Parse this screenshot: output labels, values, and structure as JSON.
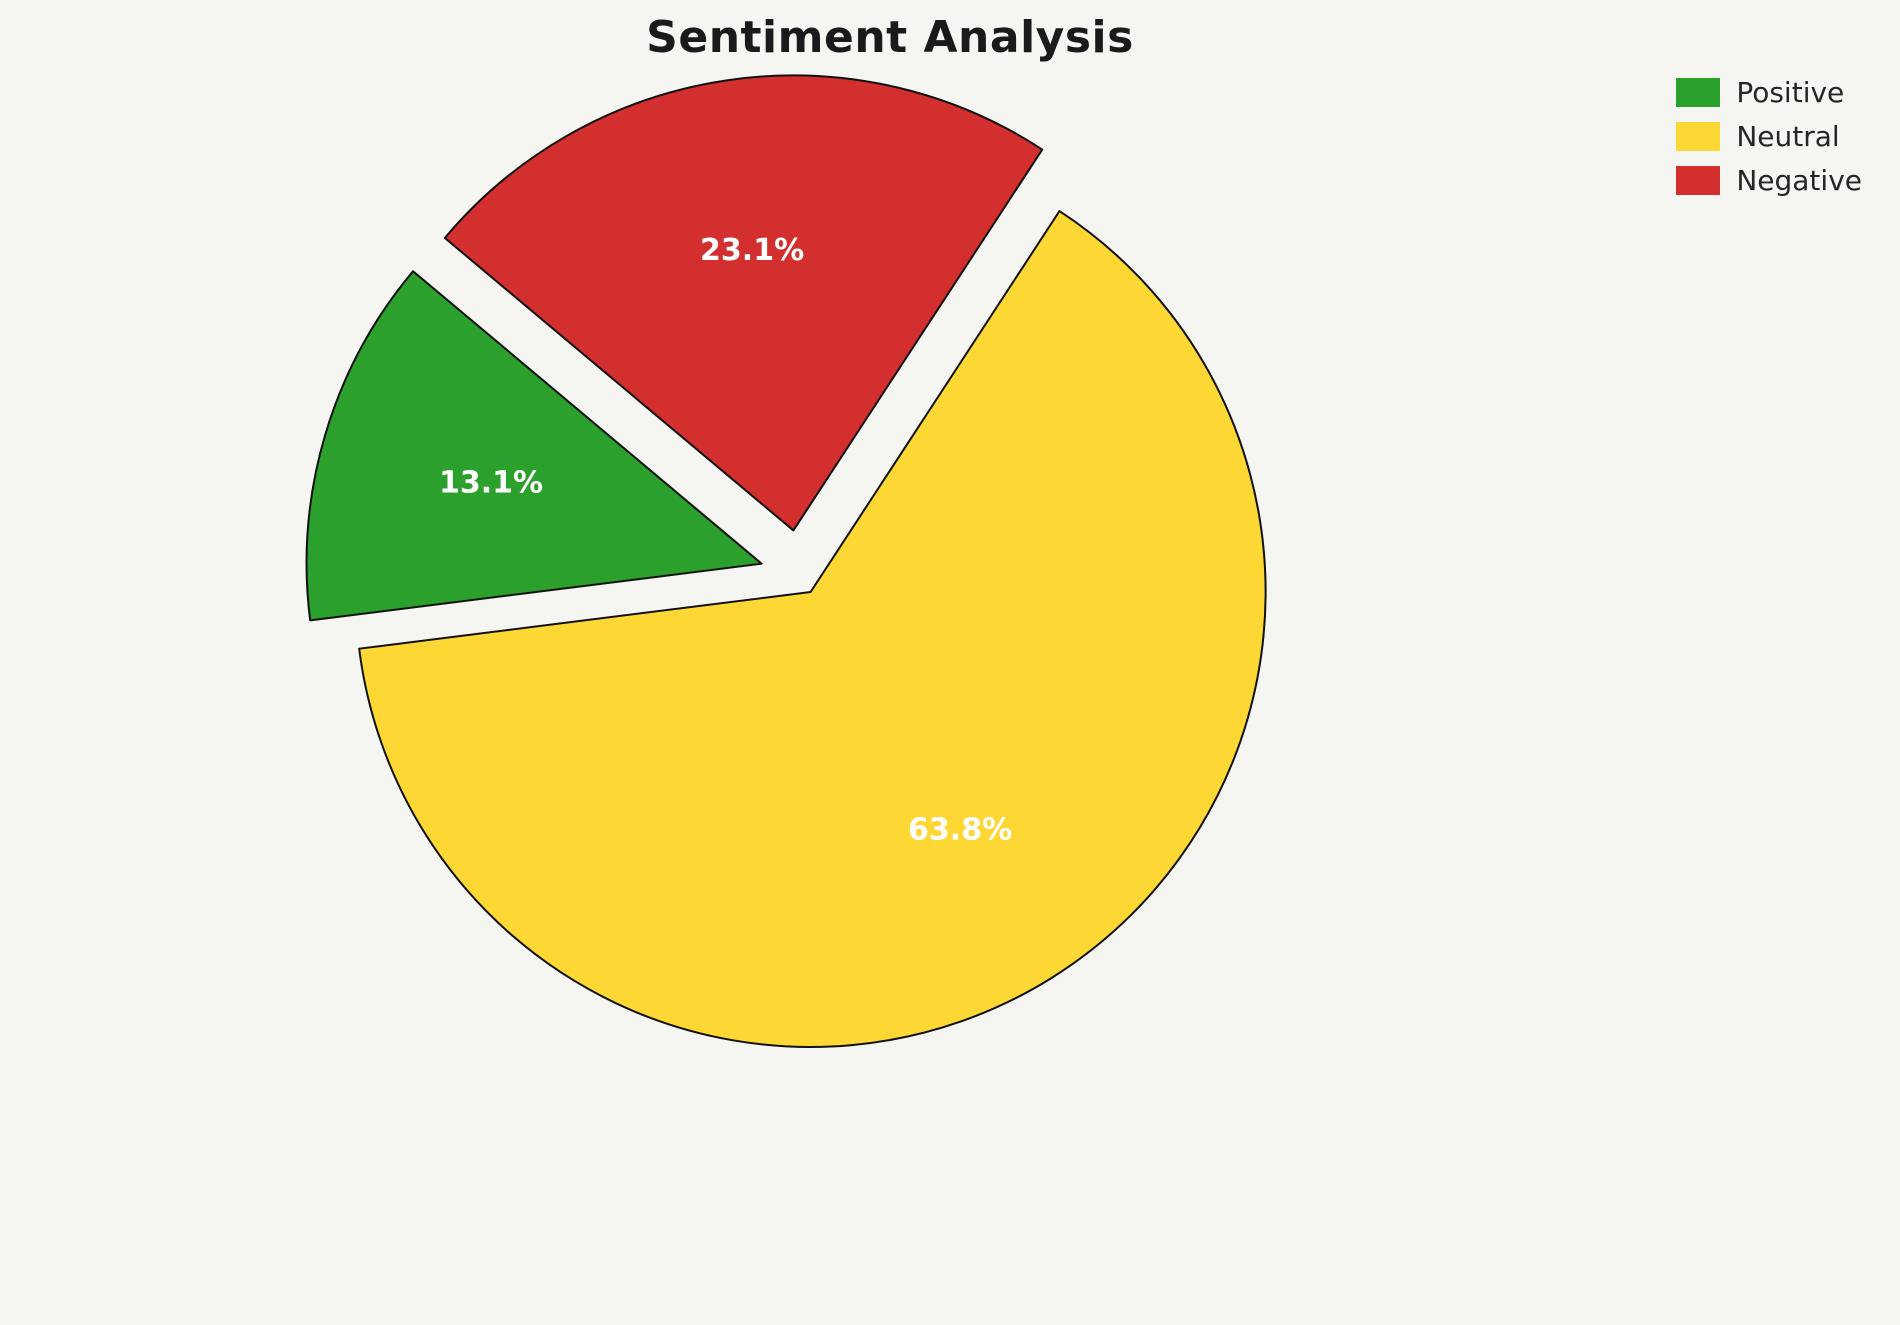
{
  "title": "Sentiment Analysis",
  "background_color": "#F5F5F2",
  "chart_data": {
    "type": "pie",
    "title": "Sentiment Analysis",
    "labels": [
      "Positive",
      "Neutral",
      "Negative"
    ],
    "values": [
      13.1,
      63.8,
      23.1
    ],
    "pct_labels": [
      "13.1%",
      "63.8%",
      "23.1%"
    ],
    "colors": [
      "#2CA02C",
      "#FDD835",
      "#D32F2F"
    ],
    "explode": [
      0.088,
      0.044,
      0.099
    ],
    "start_angle": 140,
    "direction": "counterclockwise",
    "stroke_color": "#111111",
    "stroke_width": 2,
    "label_color": "#FFFFFF",
    "legend_position": "upper right",
    "legend": [
      {
        "label": "Positive",
        "color": "#2CA02C"
      },
      {
        "label": "Neutral",
        "color": "#FDD835"
      },
      {
        "label": "Negative",
        "color": "#D32F2F"
      }
    ]
  }
}
